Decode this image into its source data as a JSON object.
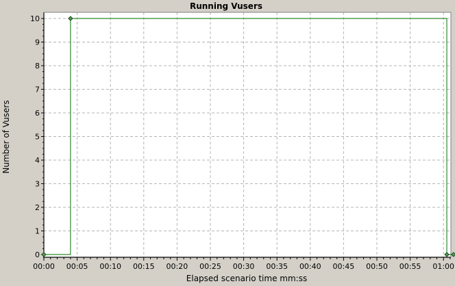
{
  "chart_data": {
    "type": "line",
    "title": "Running Vusers",
    "xlabel": "Elapsed scenario time mm:ss",
    "ylabel": "Number of Vusers",
    "x_unit": "seconds",
    "xlim": [
      0,
      62
    ],
    "ylim": [
      0,
      10
    ],
    "x_ticks": [
      {
        "value": 0,
        "label": "00:00"
      },
      {
        "value": 5,
        "label": "00:05"
      },
      {
        "value": 10,
        "label": "00:10"
      },
      {
        "value": 15,
        "label": "00:15"
      },
      {
        "value": 20,
        "label": "00:20"
      },
      {
        "value": 25,
        "label": "00:25"
      },
      {
        "value": 30,
        "label": "00:30"
      },
      {
        "value": 35,
        "label": "00:35"
      },
      {
        "value": 40,
        "label": "00:40"
      },
      {
        "value": 45,
        "label": "00:45"
      },
      {
        "value": 50,
        "label": "00:50"
      },
      {
        "value": 55,
        "label": "00:55"
      },
      {
        "value": 60,
        "label": "01:00"
      }
    ],
    "y_ticks": [
      {
        "value": 0,
        "label": "0"
      },
      {
        "value": 1,
        "label": "1"
      },
      {
        "value": 2,
        "label": "2"
      },
      {
        "value": 3,
        "label": "3"
      },
      {
        "value": 4,
        "label": "4"
      },
      {
        "value": 5,
        "label": "5"
      },
      {
        "value": 6,
        "label": "6"
      },
      {
        "value": 7,
        "label": "7"
      },
      {
        "value": 8,
        "label": "8"
      },
      {
        "value": 9,
        "label": "9"
      },
      {
        "value": 10,
        "label": "10"
      }
    ],
    "grid": true,
    "legend": "none",
    "step": true,
    "series": [
      {
        "color": "#2e8b2e",
        "points": [
          {
            "x": 0,
            "y": 0
          },
          {
            "x": 4,
            "y": 10
          },
          {
            "x": 60.5,
            "y": 0
          },
          {
            "x": 61.5,
            "y": 0
          }
        ]
      }
    ],
    "colors": {
      "background": "#d4d0c8",
      "plot_background": "#ffffff",
      "grid": "#b4b4b4",
      "marker_fill": "#5a9a5a"
    }
  }
}
